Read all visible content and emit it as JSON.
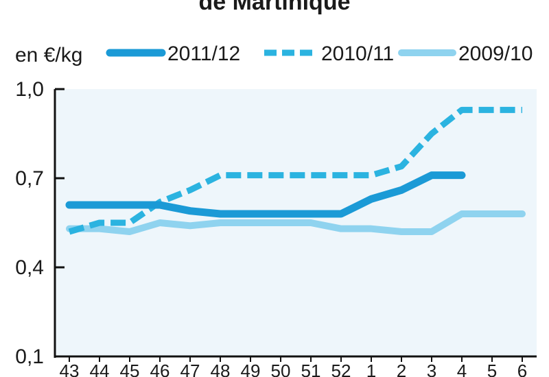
{
  "title": "de Martinique",
  "chart_data": {
    "type": "line",
    "title": "de Martinique",
    "ylabel": "en €/kg",
    "xlabel": "",
    "ylim": [
      0.1,
      1.0
    ],
    "yticks": [
      "1,0",
      "0,7",
      "0,4",
      "0,1"
    ],
    "ytick_values": [
      1.0,
      0.7,
      0.4,
      0.1
    ],
    "categories": [
      "43",
      "44",
      "45",
      "46",
      "47",
      "48",
      "49",
      "50",
      "51",
      "52",
      "1",
      "2",
      "3",
      "4",
      "5",
      "6"
    ],
    "grid": false,
    "legend_position": "top",
    "background_color": "#eef6fb",
    "series": [
      {
        "name": "2011/12",
        "style": "solid-thick",
        "color": "#1b9ad6",
        "values": [
          0.61,
          0.61,
          0.61,
          0.61,
          0.59,
          0.58,
          0.58,
          0.58,
          0.58,
          0.58,
          0.63,
          0.66,
          0.71,
          0.71,
          null,
          null
        ]
      },
      {
        "name": "2010/11",
        "style": "dashed",
        "color": "#2bb3e0",
        "values": [
          0.52,
          0.55,
          0.55,
          0.62,
          0.66,
          0.71,
          0.71,
          0.71,
          0.71,
          0.71,
          0.71,
          0.74,
          0.85,
          0.93,
          0.93,
          0.93
        ]
      },
      {
        "name": "2009/10",
        "style": "solid-light",
        "color": "#8fd3ef",
        "values": [
          0.53,
          0.53,
          0.52,
          0.55,
          0.54,
          0.55,
          0.55,
          0.55,
          0.55,
          0.53,
          0.53,
          0.52,
          0.52,
          0.58,
          0.58,
          0.58
        ]
      }
    ]
  }
}
